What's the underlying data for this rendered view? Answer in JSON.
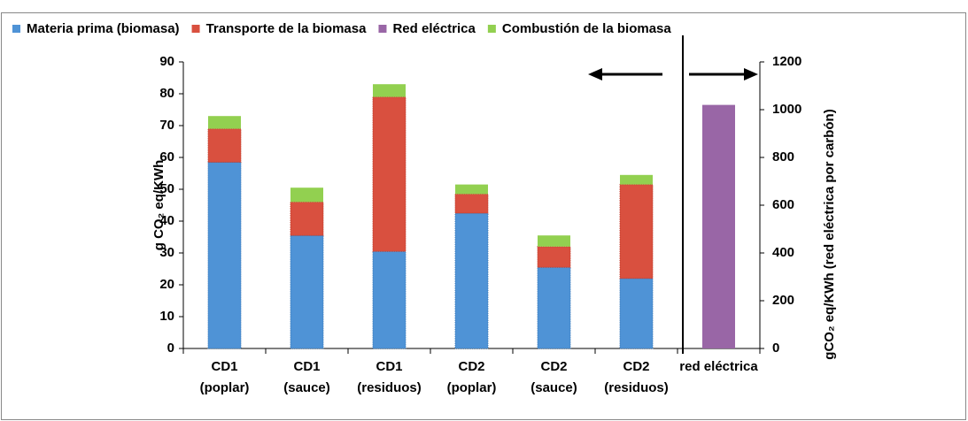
{
  "chart_data": {
    "type": "stacked_bar",
    "categories": [
      [
        "CD1",
        "(poplar)"
      ],
      [
        "CD1",
        "(sauce)"
      ],
      [
        "CD1",
        "(residuos)"
      ],
      [
        "CD2",
        "(poplar)"
      ],
      [
        "CD2",
        "(sauce)"
      ],
      [
        "CD2",
        "(residuos)"
      ],
      [
        "red eléctrica"
      ]
    ],
    "series": [
      {
        "name": "Materia prima (biomasa)",
        "color": "#4f93d6",
        "values": [
          58.5,
          35.5,
          30.5,
          42.5,
          25.5,
          22,
          null
        ]
      },
      {
        "name": "Transporte de la biomasa",
        "color": "#d9503f",
        "values": [
          10.5,
          10.5,
          48.5,
          6,
          6.5,
          29.5,
          null
        ]
      },
      {
        "name": "Red eléctrica",
        "color": "#9966a6",
        "axis": "y2",
        "values": [
          null,
          null,
          null,
          null,
          null,
          null,
          1020
        ]
      },
      {
        "name": "Combustión de la biomasa",
        "color": "#92d050",
        "values": [
          4,
          4.5,
          4,
          3,
          3.5,
          3,
          null
        ]
      }
    ],
    "y_label": "g CO₂ eq/KWh",
    "y2_label": "gCO₂ eq/KWh (red eléctrica por carbón)",
    "ylim": [
      0,
      90
    ],
    "yticks": [
      0,
      10,
      20,
      30,
      40,
      50,
      60,
      70,
      80,
      90
    ],
    "y2lim": [
      0,
      1200
    ],
    "y2ticks": [
      0,
      200,
      400,
      600,
      800,
      1000,
      1200
    ],
    "legend": "top"
  }
}
